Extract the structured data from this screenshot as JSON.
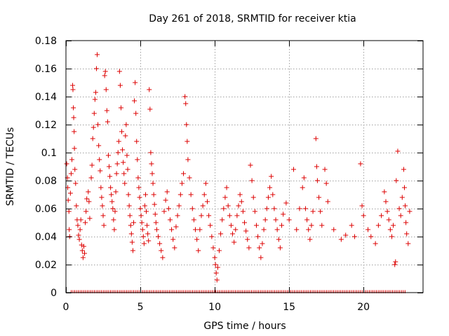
{
  "chart_data": {
    "type": "scatter",
    "title": "Day 261 of 2018, SRMTID for receiver ktia",
    "xlabel": "GPS time / hours",
    "ylabel": "SRMTID / TECUs",
    "xlim": [
      0,
      24
    ],
    "ylim": [
      0,
      0.18
    ],
    "x_ticks": [
      0,
      5,
      10,
      15,
      20
    ],
    "x_tick_labels": [
      "0",
      "5",
      "10",
      "15",
      "20"
    ],
    "y_ticks": [
      0,
      0.02,
      0.04,
      0.06,
      0.08,
      0.1,
      0.12,
      0.14,
      0.16,
      0.18
    ],
    "y_tick_labels": [
      "0",
      "0.02",
      "0.04",
      "0.06",
      "0.08",
      "0.1",
      "0.12",
      "0.14",
      "0.16",
      "0.18"
    ],
    "grid": true,
    "marker": "plus",
    "series": [
      {
        "name": "SRMTID",
        "color": "#dd0000",
        "points": [
          [
            0.05,
            0.092
          ],
          [
            0.1,
            0.082
          ],
          [
            0.12,
            0.075
          ],
          [
            0.15,
            0.066
          ],
          [
            0.2,
            0.058
          ],
          [
            0.22,
            0.045
          ],
          [
            0.25,
            0.04
          ],
          [
            0.3,
            0.071
          ],
          [
            0.35,
            0.085
          ],
          [
            0.4,
            0.095
          ],
          [
            0.45,
            0.148
          ],
          [
            0.47,
            0.145
          ],
          [
            0.5,
            0.132
          ],
          [
            0.52,
            0.125
          ],
          [
            0.55,
            0.115
          ],
          [
            0.57,
            0.103
          ],
          [
            0.6,
            0.088
          ],
          [
            0.65,
            0.078
          ],
          [
            0.7,
            0.062
          ],
          [
            0.75,
            0.052
          ],
          [
            0.8,
            0.048
          ],
          [
            0.85,
            0.041
          ],
          [
            0.9,
            0.038
          ],
          [
            0.95,
            0.045
          ],
          [
            1.0,
            0.052
          ],
          [
            1.05,
            0.034
          ],
          [
            1.1,
            0.03
          ],
          [
            1.15,
            0.025
          ],
          [
            1.2,
            0.033
          ],
          [
            1.25,
            0.028
          ],
          [
            1.3,
            0.05
          ],
          [
            1.35,
            0.058
          ],
          [
            1.4,
            0.067
          ],
          [
            1.5,
            0.072
          ],
          [
            1.55,
            0.065
          ],
          [
            1.6,
            0.053
          ],
          [
            1.7,
            0.082
          ],
          [
            1.75,
            0.091
          ],
          [
            1.8,
            0.11
          ],
          [
            1.85,
            0.118
          ],
          [
            1.9,
            0.128
          ],
          [
            1.95,
            0.138
          ],
          [
            2.0,
            0.143
          ],
          [
            2.05,
            0.16
          ],
          [
            2.1,
            0.17
          ],
          [
            2.15,
            0.12
          ],
          [
            2.2,
            0.105
          ],
          [
            2.25,
            0.095
          ],
          [
            2.3,
            0.087
          ],
          [
            2.35,
            0.075
          ],
          [
            2.4,
            0.068
          ],
          [
            2.45,
            0.062
          ],
          [
            2.5,
            0.055
          ],
          [
            2.55,
            0.048
          ],
          [
            2.6,
            0.155
          ],
          [
            2.65,
            0.158
          ],
          [
            2.7,
            0.145
          ],
          [
            2.75,
            0.13
          ],
          [
            2.8,
            0.122
          ],
          [
            2.85,
            0.098
          ],
          [
            2.9,
            0.09
          ],
          [
            2.95,
            0.083
          ],
          [
            3.0,
            0.075
          ],
          [
            3.05,
            0.07
          ],
          [
            3.1,
            0.065
          ],
          [
            3.15,
            0.06
          ],
          [
            3.2,
            0.052
          ],
          [
            3.25,
            0.045
          ],
          [
            3.3,
            0.058
          ],
          [
            3.35,
            0.072
          ],
          [
            3.4,
            0.085
          ],
          [
            3.45,
            0.092
          ],
          [
            3.5,
            0.1
          ],
          [
            3.55,
            0.108
          ],
          [
            3.6,
            0.158
          ],
          [
            3.65,
            0.148
          ],
          [
            3.7,
            0.132
          ],
          [
            3.75,
            0.115
          ],
          [
            3.8,
            0.102
          ],
          [
            3.85,
            0.093
          ],
          [
            3.9,
            0.085
          ],
          [
            3.95,
            0.078
          ],
          [
            4.0,
            0.112
          ],
          [
            4.05,
            0.12
          ],
          [
            4.1,
            0.098
          ],
          [
            4.15,
            0.088
          ],
          [
            4.2,
            0.07
          ],
          [
            4.25,
            0.062
          ],
          [
            4.3,
            0.055
          ],
          [
            4.35,
            0.048
          ],
          [
            4.4,
            0.042
          ],
          [
            4.45,
            0.036
          ],
          [
            4.5,
            0.03
          ],
          [
            4.55,
            0.05
          ],
          [
            4.6,
            0.137
          ],
          [
            4.65,
            0.15
          ],
          [
            4.7,
            0.128
          ],
          [
            4.75,
            0.108
          ],
          [
            4.8,
            0.095
          ],
          [
            4.85,
            0.082
          ],
          [
            4.9,
            0.075
          ],
          [
            4.95,
            0.068
          ],
          [
            5.0,
            0.06
          ],
          [
            5.05,
            0.055
          ],
          [
            5.1,
            0.05
          ],
          [
            5.15,
            0.045
          ],
          [
            5.2,
            0.04
          ],
          [
            5.25,
            0.035
          ],
          [
            5.3,
            0.062
          ],
          [
            5.35,
            0.07
          ],
          [
            5.4,
            0.058
          ],
          [
            5.45,
            0.048
          ],
          [
            5.5,
            0.042
          ],
          [
            5.55,
            0.037
          ],
          [
            5.6,
            0.145
          ],
          [
            5.65,
            0.131
          ],
          [
            5.7,
            0.1
          ],
          [
            5.75,
            0.092
          ],
          [
            5.8,
            0.085
          ],
          [
            5.85,
            0.078
          ],
          [
            5.9,
            0.07
          ],
          [
            5.95,
            0.063
          ],
          [
            6.0,
            0.056
          ],
          [
            6.05,
            0.05
          ],
          [
            6.1,
            0.045
          ],
          [
            6.2,
            0.04
          ],
          [
            6.3,
            0.035
          ],
          [
            6.4,
            0.03
          ],
          [
            6.5,
            0.025
          ],
          [
            6.6,
            0.058
          ],
          [
            6.7,
            0.066
          ],
          [
            6.8,
            0.072
          ],
          [
            6.9,
            0.06
          ],
          [
            7.0,
            0.052
          ],
          [
            7.1,
            0.045
          ],
          [
            7.2,
            0.038
          ],
          [
            7.3,
            0.032
          ],
          [
            7.4,
            0.047
          ],
          [
            7.5,
            0.055
          ],
          [
            7.6,
            0.062
          ],
          [
            7.7,
            0.07
          ],
          [
            7.8,
            0.078
          ],
          [
            7.9,
            0.085
          ],
          [
            8.0,
            0.14
          ],
          [
            8.05,
            0.135
          ],
          [
            8.1,
            0.12
          ],
          [
            8.15,
            0.108
          ],
          [
            8.2,
            0.095
          ],
          [
            8.3,
            0.082
          ],
          [
            8.4,
            0.07
          ],
          [
            8.5,
            0.06
          ],
          [
            8.6,
            0.052
          ],
          [
            8.7,
            0.045
          ],
          [
            8.8,
            0.038
          ],
          [
            8.9,
            0.03
          ],
          [
            9.0,
            0.045
          ],
          [
            9.1,
            0.055
          ],
          [
            9.2,
            0.062
          ],
          [
            9.3,
            0.07
          ],
          [
            9.4,
            0.078
          ],
          [
            9.5,
            0.065
          ],
          [
            9.6,
            0.055
          ],
          [
            9.7,
            0.048
          ],
          [
            9.8,
            0.04
          ],
          [
            9.9,
            0.032
          ],
          [
            10.0,
            0.025
          ],
          [
            10.05,
            0.02
          ],
          [
            10.1,
            0.014
          ],
          [
            10.15,
            0.009
          ],
          [
            10.2,
            0.018
          ],
          [
            10.3,
            0.03
          ],
          [
            10.4,
            0.042
          ],
          [
            10.5,
            0.052
          ],
          [
            10.6,
            0.06
          ],
          [
            10.7,
            0.068
          ],
          [
            10.8,
            0.075
          ],
          [
            10.9,
            0.062
          ],
          [
            11.0,
            0.055
          ],
          [
            11.1,
            0.048
          ],
          [
            11.2,
            0.042
          ],
          [
            11.3,
            0.036
          ],
          [
            11.4,
            0.045
          ],
          [
            11.5,
            0.055
          ],
          [
            11.6,
            0.062
          ],
          [
            11.7,
            0.07
          ],
          [
            11.8,
            0.065
          ],
          [
            11.9,
            0.058
          ],
          [
            12.0,
            0.05
          ],
          [
            12.1,
            0.044
          ],
          [
            12.2,
            0.038
          ],
          [
            12.3,
            0.032
          ],
          [
            12.4,
            0.091
          ],
          [
            12.5,
            0.08
          ],
          [
            12.6,
            0.068
          ],
          [
            12.7,
            0.058
          ],
          [
            12.8,
            0.048
          ],
          [
            12.9,
            0.04
          ],
          [
            13.0,
            0.032
          ],
          [
            13.1,
            0.025
          ],
          [
            13.2,
            0.035
          ],
          [
            13.3,
            0.045
          ],
          [
            13.4,
            0.052
          ],
          [
            13.5,
            0.06
          ],
          [
            13.6,
            0.068
          ],
          [
            13.7,
            0.075
          ],
          [
            13.8,
            0.083
          ],
          [
            13.9,
            0.07
          ],
          [
            14.0,
            0.06
          ],
          [
            14.1,
            0.052
          ],
          [
            14.2,
            0.045
          ],
          [
            14.3,
            0.038
          ],
          [
            14.4,
            0.032
          ],
          [
            14.5,
            0.048
          ],
          [
            14.6,
            0.056
          ],
          [
            14.8,
            0.064
          ],
          [
            15.0,
            0.052
          ],
          [
            15.3,
            0.088
          ],
          [
            15.5,
            0.045
          ],
          [
            15.7,
            0.06
          ],
          [
            15.9,
            0.075
          ],
          [
            16.0,
            0.082
          ],
          [
            16.1,
            0.06
          ],
          [
            16.2,
            0.052
          ],
          [
            16.3,
            0.045
          ],
          [
            16.4,
            0.038
          ],
          [
            16.5,
            0.048
          ],
          [
            16.6,
            0.058
          ],
          [
            16.8,
            0.11
          ],
          [
            16.85,
            0.09
          ],
          [
            16.9,
            0.08
          ],
          [
            17.0,
            0.068
          ],
          [
            17.1,
            0.058
          ],
          [
            17.2,
            0.048
          ],
          [
            17.4,
            0.088
          ],
          [
            17.5,
            0.078
          ],
          [
            17.6,
            0.065
          ],
          [
            18.0,
            0.045
          ],
          [
            18.5,
            0.038
          ],
          [
            18.8,
            0.041
          ],
          [
            19.2,
            0.048
          ],
          [
            19.4,
            0.04
          ],
          [
            19.8,
            0.092
          ],
          [
            19.9,
            0.062
          ],
          [
            20.0,
            0.055
          ],
          [
            20.3,
            0.045
          ],
          [
            20.5,
            0.04
          ],
          [
            20.8,
            0.035
          ],
          [
            21.0,
            0.048
          ],
          [
            21.2,
            0.055
          ],
          [
            21.4,
            0.072
          ],
          [
            21.5,
            0.065
          ],
          [
            21.6,
            0.058
          ],
          [
            21.7,
            0.052
          ],
          [
            21.8,
            0.045
          ],
          [
            21.9,
            0.04
          ],
          [
            22.0,
            0.048
          ],
          [
            22.1,
            0.02
          ],
          [
            22.15,
            0.022
          ],
          [
            22.2,
            0.08
          ],
          [
            22.3,
            0.101
          ],
          [
            22.4,
            0.06
          ],
          [
            22.5,
            0.055
          ],
          [
            22.6,
            0.068
          ],
          [
            22.7,
            0.088
          ],
          [
            22.75,
            0.075
          ],
          [
            22.8,
            0.062
          ],
          [
            22.85,
            0.05
          ],
          [
            22.9,
            0.042
          ],
          [
            23.0,
            0.035
          ],
          [
            23.1,
            0.058
          ]
        ]
      }
    ]
  }
}
